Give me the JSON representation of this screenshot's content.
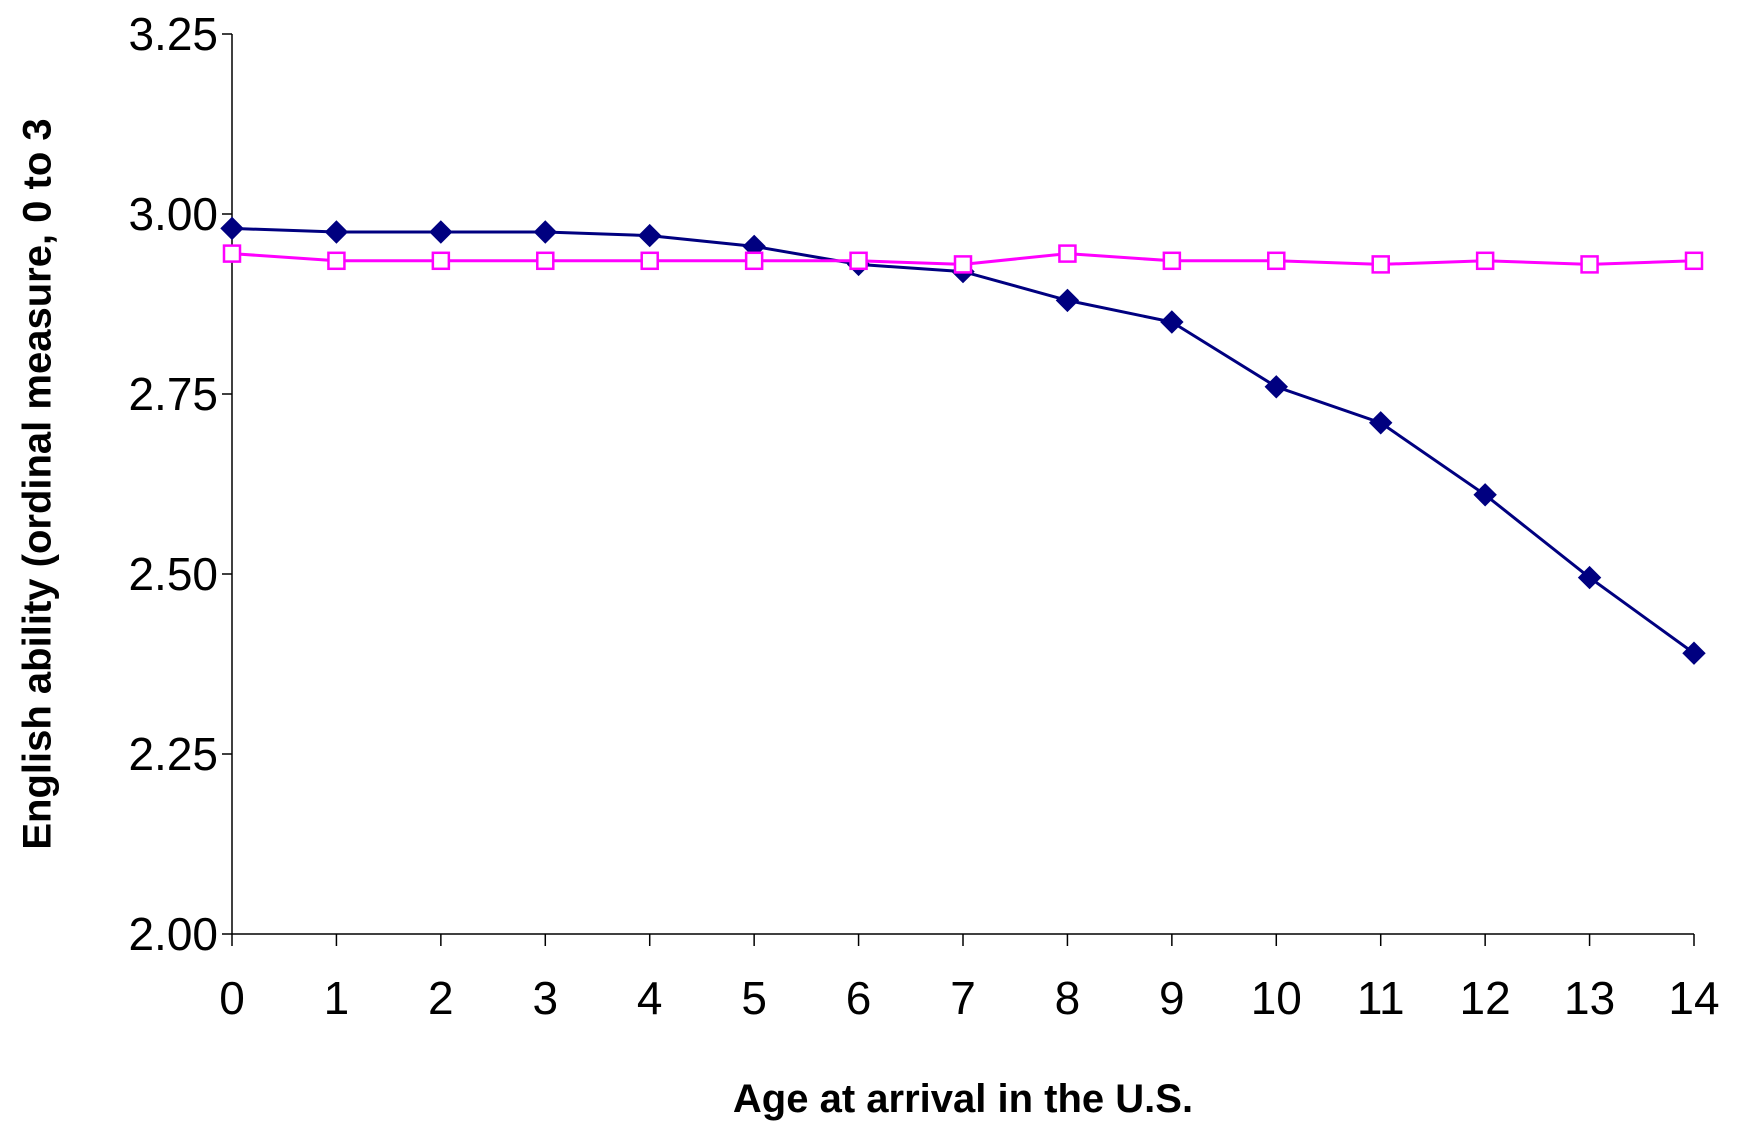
{
  "chart_data": {
    "type": "line",
    "title": "",
    "xlabel": "Age at arrival in the U.S.",
    "ylabel": "English ability (ordinal measure, 0 to 3",
    "x": [
      0,
      1,
      2,
      3,
      4,
      5,
      6,
      7,
      8,
      9,
      10,
      11,
      12,
      13,
      14
    ],
    "ylim": [
      2.0,
      3.25
    ],
    "yticks": [
      "2.00",
      "2.25",
      "2.50",
      "2.75",
      "3.00",
      "3.25"
    ],
    "grid": false,
    "legend": "none",
    "series": [
      {
        "marker": "filled-diamond",
        "color": "#000080",
        "values": [
          2.98,
          2.975,
          2.975,
          2.975,
          2.97,
          2.955,
          2.93,
          2.92,
          2.88,
          2.85,
          2.76,
          2.71,
          2.61,
          2.495,
          2.39
        ]
      },
      {
        "marker": "hollow-square",
        "color": "#ff00ff",
        "values": [
          2.945,
          2.935,
          2.935,
          2.935,
          2.935,
          2.935,
          2.935,
          2.93,
          2.945,
          2.935,
          2.935,
          2.93,
          2.935,
          2.93,
          2.935
        ]
      }
    ]
  }
}
